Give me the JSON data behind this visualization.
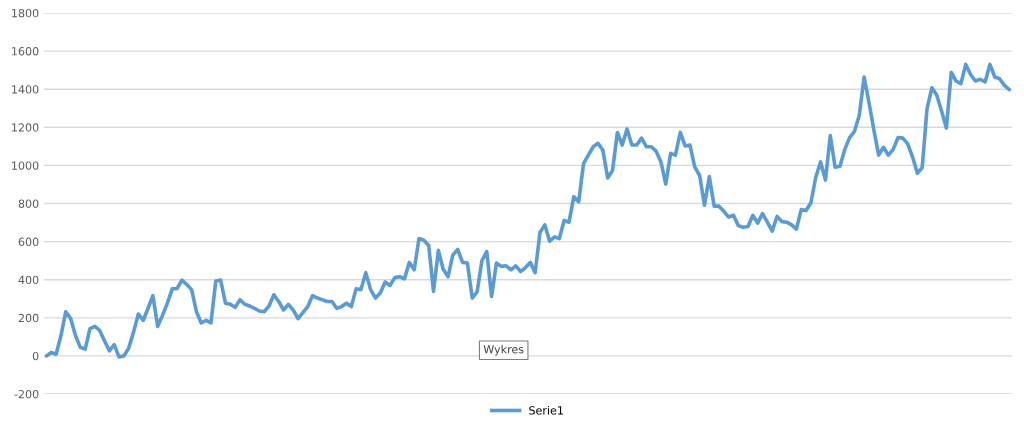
{
  "chart_data": {
    "type": "line",
    "categories": [
      null,
      null,
      null,
      null,
      null,
      null,
      null,
      null,
      null,
      null,
      null,
      null,
      null,
      null,
      null,
      null,
      null,
      null,
      null,
      null,
      null,
      null,
      null,
      null,
      null,
      null,
      null,
      null,
      null,
      null,
      null,
      null,
      null,
      null,
      null,
      null,
      null,
      null,
      null,
      null,
      null,
      null,
      null,
      null,
      null,
      null,
      null,
      null,
      null,
      null,
      null,
      null,
      null,
      null,
      null,
      null,
      null,
      null,
      null,
      null,
      null,
      null,
      null,
      null,
      null,
      null,
      null,
      null,
      null,
      null,
      null,
      null,
      null,
      null,
      null,
      null,
      null,
      null,
      null,
      null,
      null,
      null,
      null,
      null,
      null,
      null,
      null,
      null,
      null,
      null,
      null,
      null,
      null,
      null,
      null,
      null,
      null,
      null,
      null,
      null,
      null,
      null,
      null,
      null,
      null,
      null,
      null,
      null,
      null,
      null,
      null,
      null,
      null,
      null,
      null,
      null,
      null,
      null,
      null,
      null,
      null,
      null,
      null,
      null,
      null,
      null,
      null,
      null,
      null,
      null,
      null,
      null,
      null,
      null,
      null,
      null,
      null,
      null,
      null,
      null,
      null,
      null,
      null,
      null,
      null,
      null,
      null,
      null,
      null,
      null,
      null,
      null,
      null,
      null,
      null,
      null,
      null,
      null,
      null,
      null,
      null,
      null,
      null,
      null,
      null,
      null,
      null,
      null,
      null,
      null,
      null,
      null,
      null,
      null,
      null,
      null,
      null,
      null,
      null,
      null,
      null,
      null,
      null,
      null,
      null,
      null,
      null,
      null,
      null,
      null,
      null,
      null,
      null,
      null,
      null,
      null,
      null,
      null,
      null,
      null
    ],
    "series": [
      {
        "name": "Serie1",
        "color": "#5b9bd5",
        "values": [
          0,
          18,
          9,
          107,
          232,
          196,
          107,
          45,
          36,
          143,
          155,
          134,
          80,
          27,
          59,
          -5,
          0,
          41,
          125,
          220,
          187,
          250,
          316,
          155,
          214,
          277,
          352,
          354,
          398,
          375,
          348,
          232,
          173,
          187,
          173,
          393,
          398,
          277,
          271,
          255,
          295,
          271,
          262,
          250,
          236,
          232,
          262,
          321,
          286,
          241,
          271,
          241,
          196,
          227,
          259,
          316,
          304,
          295,
          286,
          286,
          250,
          259,
          277,
          259,
          352,
          348,
          437,
          348,
          304,
          330,
          388,
          370,
          411,
          416,
          405,
          491,
          452,
          616,
          607,
          580,
          339,
          554,
          455,
          416,
          530,
          559,
          491,
          488,
          304,
          336,
          500,
          548,
          312,
          488,
          470,
          473,
          452,
          473,
          443,
          464,
          491,
          437,
          648,
          688,
          602,
          625,
          616,
          711,
          702,
          836,
          809,
          1009,
          1054,
          1098,
          1116,
          1080,
          934,
          973,
          1173,
          1107,
          1191,
          1107,
          1107,
          1143,
          1098,
          1098,
          1075,
          1018,
          902,
          1063,
          1054,
          1173,
          1102,
          1107,
          991,
          947,
          791,
          941,
          786,
          786,
          759,
          729,
          738,
          684,
          675,
          679,
          738,
          697,
          747,
          702,
          655,
          732,
          705,
          702,
          688,
          666,
          768,
          763,
          804,
          938,
          1018,
          923,
          1157,
          991,
          996,
          1084,
          1146,
          1179,
          1263,
          1464,
          1330,
          1187,
          1054,
          1095,
          1054,
          1084,
          1146,
          1143,
          1113,
          1045,
          959,
          988,
          1298,
          1407,
          1370,
          1286,
          1196,
          1488,
          1443,
          1429,
          1530,
          1477,
          1443,
          1452,
          1438,
          1530,
          1464,
          1455,
          1420,
          1398
        ]
      }
    ],
    "ylim": [
      -200,
      1800
    ],
    "yticks": [
      -200,
      0,
      200,
      400,
      600,
      800,
      1000,
      1200,
      1400,
      1600,
      1800
    ],
    "grid": "y",
    "legend": "bottom",
    "marker": "none",
    "line_style": "solid",
    "annotations": [
      "Wykres"
    ]
  }
}
